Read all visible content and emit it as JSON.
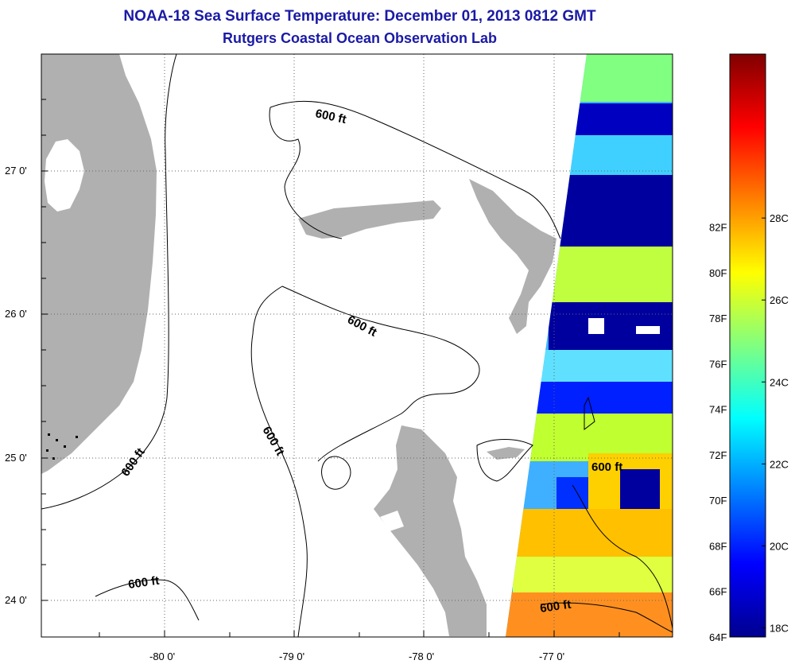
{
  "header": {
    "title": "NOAA-18 Sea Surface Temperature:  December 01, 2013 0812 GMT",
    "subtitle": "Rutgers Coastal Ocean Observation Lab"
  },
  "map": {
    "lat_ticks": [
      "27 0'",
      "26 0'",
      "25 0'",
      "24 0'"
    ],
    "lon_ticks": [
      "-80 0'",
      "-79 0'",
      "-78 0'",
      "-77 0'"
    ],
    "contour_labels": [
      "600 ft",
      "600 ft",
      "600 ft",
      "600 ft",
      "600 ft",
      "600 ft"
    ],
    "colors": {
      "land": "#b0b0b0",
      "frame": "#000000"
    }
  },
  "colorbar": {
    "fahrenheit_labels": [
      "82F",
      "80F",
      "78F",
      "76F",
      "74F",
      "72F",
      "70F",
      "68F",
      "66F",
      "64F"
    ],
    "celsius_labels": [
      "28C",
      "26C",
      "24C",
      "22C",
      "20C",
      "18C"
    ]
  }
}
